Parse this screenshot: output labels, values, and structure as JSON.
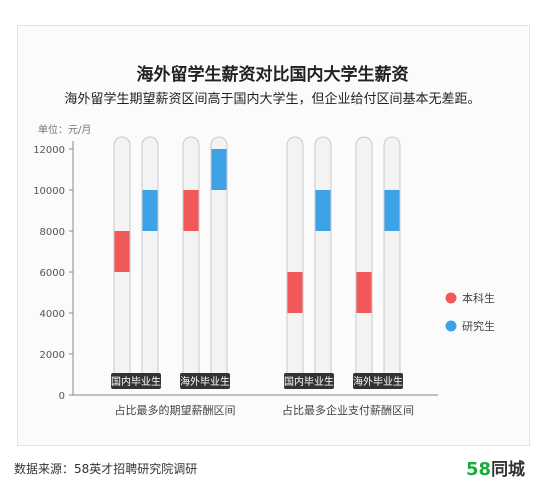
{
  "title": "海外留学生薪资对比国内大学生薪资",
  "subtitle": "海外留学生期望薪资区间高于国内大学生，但企业给付区间基本无差距。",
  "unit_label": "单位：元/月",
  "footer": {
    "source": "数据来源：58英才招聘研究院调研",
    "logo_num": "58",
    "logo_text": "同城"
  },
  "chart_data": {
    "type": "range-bar",
    "ylim": [
      0,
      12000
    ],
    "yticks": [
      0,
      2000,
      4000,
      6000,
      8000,
      10000,
      12000
    ],
    "groups": [
      {
        "label": "占比最多的期望薪酬区间",
        "subgroups": [
          {
            "label": "国内毕业生",
            "bachelor": [
              6000,
              8000
            ],
            "master": [
              8000,
              10000
            ]
          },
          {
            "label": "海外毕业生",
            "bachelor": [
              8000,
              10000
            ],
            "master": [
              10000,
              12000
            ]
          }
        ]
      },
      {
        "label": "占比最多企业支付薪酬区间",
        "subgroups": [
          {
            "label": "国内毕业生",
            "bachelor": [
              4000,
              6000
            ],
            "master": [
              8000,
              10000
            ]
          },
          {
            "label": "海外毕业生",
            "bachelor": [
              4000,
              6000
            ],
            "master": [
              8000,
              10000
            ]
          }
        ]
      }
    ],
    "legend": [
      {
        "key": "bachelor",
        "label": "本科生",
        "color": "#f0585a"
      },
      {
        "key": "master",
        "label": "研究生",
        "color": "#3da3e6"
      }
    ],
    "legend_position": "right"
  }
}
